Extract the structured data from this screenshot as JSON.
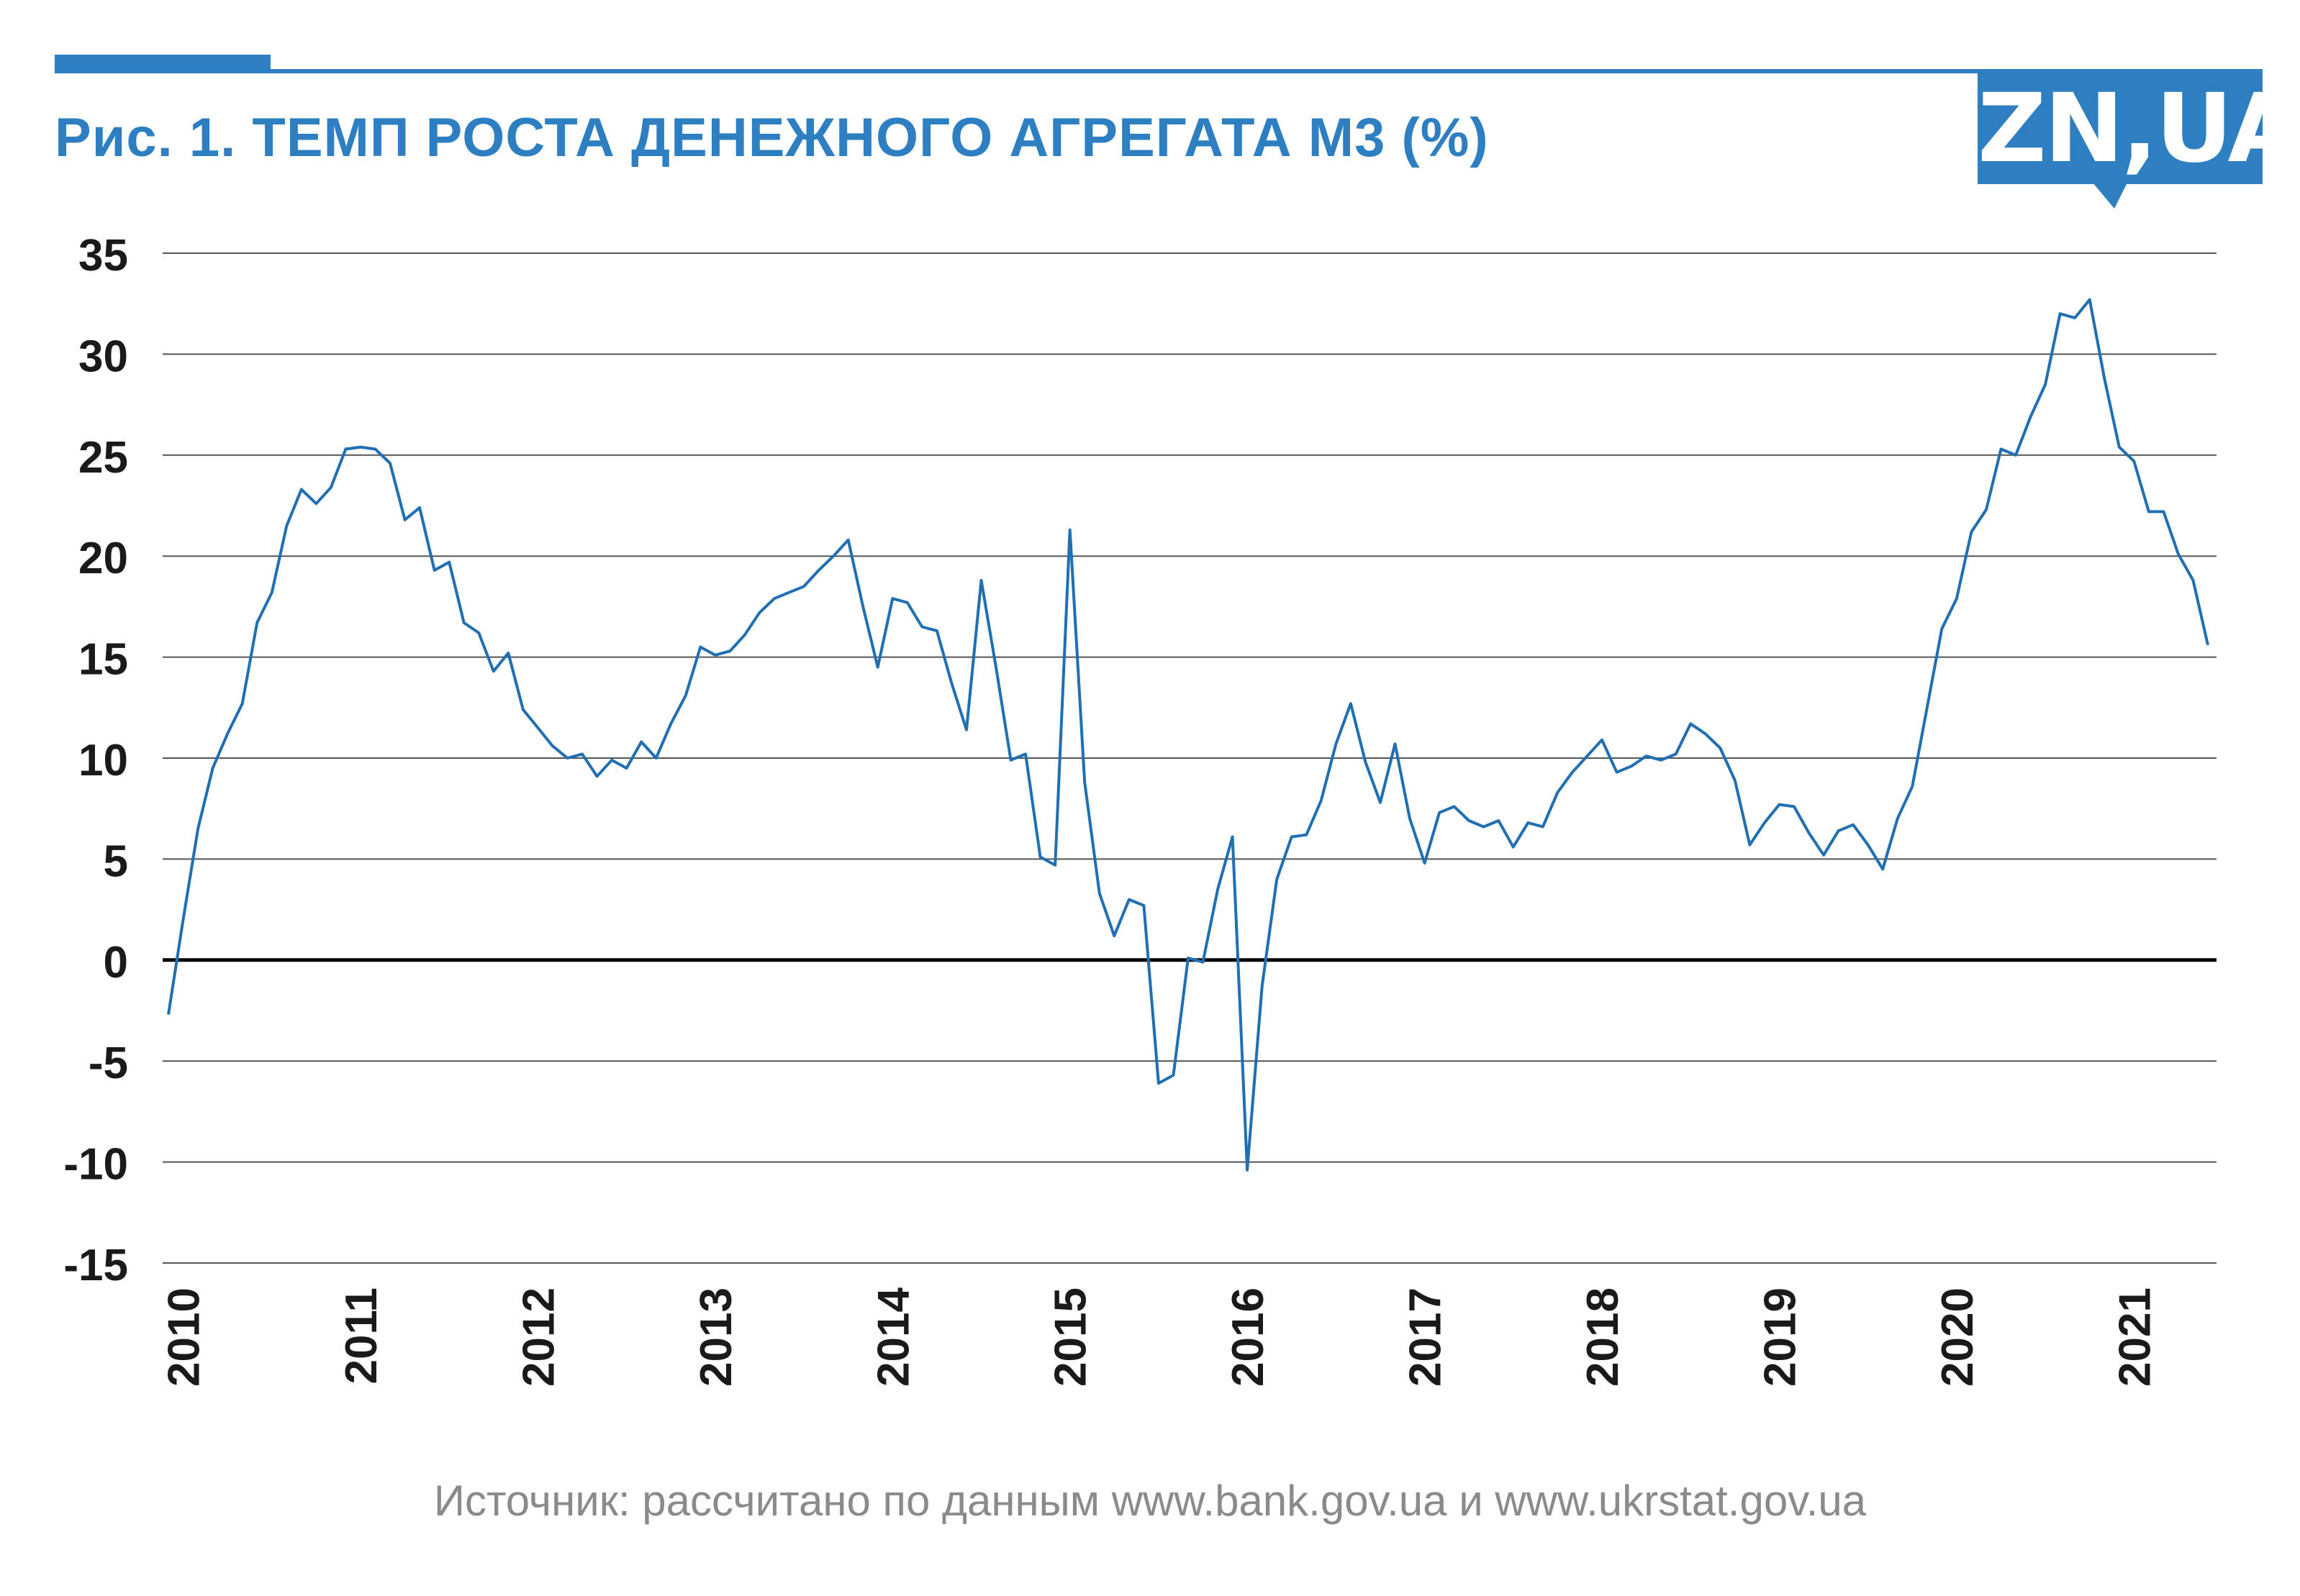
{
  "header": {
    "title": "Рис. 1. ТЕМП РОСТА ДЕНЕЖНОГО АГРЕГАТА М3 (%)",
    "logo_text": "ZN,UA",
    "accent_color": "#2d7fc1"
  },
  "footer": {
    "source": "Источник: рассчитано по данным www.bank.gov.ua и www.ukrstat.gov.ua"
  },
  "chart_data": {
    "type": "line",
    "title": "Рис. 1. ТЕМП РОСТА ДЕНЕЖНОГО АГРЕГАТА М3 (%)",
    "xlabel": "",
    "ylabel": "",
    "ylim": [
      -15,
      35
    ],
    "yticks": [
      "35",
      "30",
      "25",
      "20",
      "15",
      "10",
      "5",
      "0",
      "-5",
      "-10",
      "-15"
    ],
    "xticks": [
      "2010",
      "2011",
      "2012",
      "2013",
      "2014",
      "2015",
      "2016",
      "2017",
      "2018",
      "2019",
      "2020",
      "2021"
    ],
    "grid": "horizontal",
    "legend": "none",
    "line_color": "#1f6fb2",
    "series": [
      {
        "values": [
          -2.7,
          2.0,
          6.5,
          9.5,
          11.2,
          12.7,
          16.7,
          18.2,
          21.5,
          23.3,
          22.6,
          23.4,
          25.3,
          25.4,
          25.3,
          24.6,
          21.8,
          22.4,
          19.3,
          19.7,
          16.7,
          16.2,
          14.3,
          15.2,
          12.4,
          11.5,
          10.6,
          10.0,
          10.2,
          9.1,
          9.9,
          9.5,
          10.8,
          10.0,
          11.7,
          13.1,
          15.5,
          15.1,
          15.3,
          16.1,
          17.2,
          17.9,
          18.2,
          18.5,
          19.3,
          20.0,
          20.8,
          17.5,
          14.5,
          17.9,
          17.7,
          16.5,
          16.3,
          13.7,
          11.4,
          18.8,
          14.5,
          9.9,
          10.2,
          5.1,
          4.7,
          21.3,
          8.8,
          3.3,
          1.2,
          3.0,
          2.7,
          -6.1,
          -5.7,
          0.1,
          -0.1,
          3.5,
          6.1,
          -10.4,
          -1.3,
          4.0,
          6.1,
          6.2,
          7.9,
          10.7,
          12.7,
          9.8,
          7.8,
          10.7,
          7.0,
          4.8,
          7.3,
          7.6,
          6.9,
          6.6,
          6.9,
          5.6,
          6.8,
          6.6,
          8.3,
          9.3,
          10.1,
          10.9,
          9.3,
          9.6,
          10.1,
          9.9,
          10.2,
          11.7,
          11.2,
          10.5,
          8.9,
          5.7,
          6.8,
          7.7,
          7.6,
          6.3,
          5.2,
          6.4,
          6.7,
          5.7,
          4.5,
          7.0,
          8.6,
          12.5,
          16.4,
          17.9,
          21.2,
          22.3,
          25.3,
          25.0,
          26.9,
          28.5,
          32.0,
          31.8,
          32.7,
          28.8,
          25.4,
          24.7,
          22.2,
          22.2,
          20.1,
          18.8,
          15.6
        ]
      }
    ]
  }
}
